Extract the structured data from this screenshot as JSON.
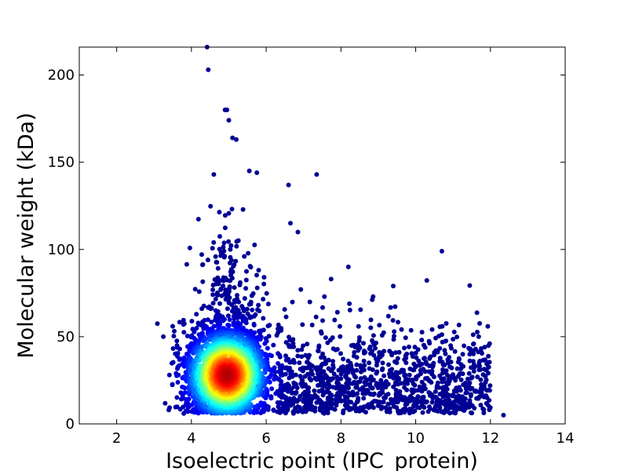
{
  "chart_data": {
    "type": "scatter",
    "title": "",
    "xlabel": "Isoelectric point (IPC_protein)",
    "ylabel": "Molecular weight (kDa)",
    "xlim": [
      1,
      14
    ],
    "ylim": [
      0,
      216
    ],
    "xticks": [
      2,
      4,
      6,
      8,
      10,
      12,
      14
    ],
    "yticks": [
      0,
      50,
      100,
      150,
      200
    ],
    "grid": false,
    "legend": "none",
    "colormap": "jet (point density)",
    "colors": {
      "low_density": "#00008b",
      "mid_density": "#00ffff",
      "high_density": "#cc0000"
    },
    "outlier_points": [
      {
        "x": 4.42,
        "y": 216
      },
      {
        "x": 4.45,
        "y": 203
      },
      {
        "x": 4.9,
        "y": 180
      },
      {
        "x": 4.95,
        "y": 180
      },
      {
        "x": 5.0,
        "y": 174
      },
      {
        "x": 5.1,
        "y": 164
      },
      {
        "x": 5.2,
        "y": 163
      },
      {
        "x": 5.55,
        "y": 145
      },
      {
        "x": 5.75,
        "y": 144
      },
      {
        "x": 7.35,
        "y": 143
      },
      {
        "x": 4.6,
        "y": 143
      },
      {
        "x": 6.6,
        "y": 137
      },
      {
        "x": 6.65,
        "y": 115
      },
      {
        "x": 6.85,
        "y": 110
      },
      {
        "x": 10.7,
        "y": 99
      },
      {
        "x": 8.2,
        "y": 90
      },
      {
        "x": 9.4,
        "y": 79
      },
      {
        "x": 12.35,
        "y": 5
      },
      {
        "x": 3.25,
        "y": 50
      },
      {
        "x": 3.5,
        "y": 56
      }
    ],
    "clusters": [
      {
        "name": "main",
        "x_center": 4.95,
        "y_center": 28,
        "x_spread": 0.55,
        "y_spread": 14,
        "count": 2400
      },
      {
        "name": "main_tail",
        "x_center": 5.0,
        "y_center": 70,
        "x_spread": 0.45,
        "y_spread": 25,
        "count": 260
      },
      {
        "name": "basic",
        "x_center": 9.6,
        "y_center": 27,
        "x_spread": 1.35,
        "y_spread": 14,
        "count": 1100
      }
    ]
  }
}
